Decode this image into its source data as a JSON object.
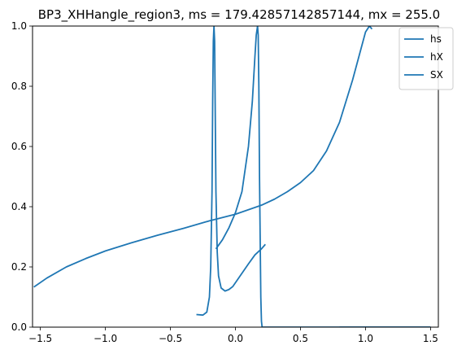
{
  "chart_data": {
    "type": "line",
    "title": "BP3_XHHangle_region3, ms = 179.42857142857144, mx = 255.0",
    "xlabel": "",
    "ylabel": "",
    "xlim": [
      -1.56,
      1.56
    ],
    "ylim": [
      0,
      1.0
    ],
    "xticks": [
      "−1.5",
      "−1.0",
      "−0.5",
      "0.0",
      "0.5",
      "1.0",
      "1.5"
    ],
    "xtick_values": [
      -1.5,
      -1.0,
      -0.5,
      0.0,
      0.5,
      1.0,
      1.5
    ],
    "yticks": [
      "0.0",
      "0.2",
      "0.4",
      "0.6",
      "0.8",
      "1.0"
    ],
    "ytick_values": [
      0.0,
      0.2,
      0.4,
      0.6,
      0.8,
      1.0
    ],
    "grid": false,
    "legend_position": "top-right",
    "line_color": "#1f77b4",
    "series": [
      {
        "name": "hs",
        "x": [
          -1.55,
          -1.45,
          -1.3,
          -1.15,
          -1.0,
          -0.8,
          -0.6,
          -0.4,
          -0.2,
          0.0,
          0.2,
          0.3,
          0.4,
          0.5,
          0.6,
          0.7,
          0.8,
          0.9,
          0.95,
          1.0,
          1.03,
          1.05
        ],
        "y": [
          0.133,
          0.163,
          0.2,
          0.228,
          0.253,
          0.28,
          0.305,
          0.328,
          0.353,
          0.375,
          0.405,
          0.425,
          0.45,
          0.48,
          0.52,
          0.585,
          0.68,
          0.82,
          0.9,
          0.98,
          1.0,
          0.99
        ]
      },
      {
        "name": "hX",
        "x": [
          -0.3,
          -0.25,
          -0.22,
          -0.2,
          -0.19,
          -0.18,
          -0.175,
          -0.17,
          -0.165,
          -0.16,
          -0.155,
          -0.15,
          -0.14,
          -0.13,
          -0.11,
          -0.08,
          -0.05,
          -0.02,
          0.02,
          0.1,
          0.15,
          0.2,
          0.23
        ],
        "y": [
          0.042,
          0.04,
          0.05,
          0.1,
          0.2,
          0.45,
          0.75,
          0.95,
          1.0,
          0.95,
          0.7,
          0.45,
          0.25,
          0.17,
          0.13,
          0.12,
          0.125,
          0.135,
          0.16,
          0.21,
          0.24,
          0.26,
          0.275
        ]
      },
      {
        "name": "SX",
        "x": [
          -0.15,
          -0.1,
          -0.05,
          0.0,
          0.05,
          0.1,
          0.13,
          0.15,
          0.16,
          0.17,
          0.175,
          0.18,
          0.185,
          0.19,
          0.195,
          0.2,
          0.205,
          0.21,
          0.9,
          0.95,
          1.0,
          1.03,
          1.05,
          1.07,
          1.1,
          1.13,
          1.16,
          1.2,
          1.25,
          1.3,
          1.35,
          1.4,
          1.45,
          1.5
        ],
        "y": [
          0.26,
          0.29,
          0.33,
          0.38,
          0.45,
          0.6,
          0.75,
          0.9,
          0.97,
          1.0,
          0.97,
          0.8,
          0.5,
          0.3,
          0.1,
          0.02,
          0.0,
          0.0,
          0.0,
          0.0,
          0.0,
          0.0,
          0.0,
          0.0,
          0.0,
          0.0,
          0.0,
          0.0,
          0.0,
          0.0,
          0.0,
          0.0,
          0.0,
          0.0
        ]
      },
      {
        "name": "",
        "x": [
          0.8,
          0.9,
          0.95,
          1.0,
          1.02,
          1.04,
          1.06,
          1.08,
          1.1,
          1.13,
          1.16,
          1.2,
          1.25,
          1.3,
          1.35,
          1.4,
          1.45,
          1.5
        ],
        "y": [
          0.0,
          0.0,
          0.0,
          0.0,
          0.0,
          0.0,
          0.0,
          0.0,
          0.0,
          0.0,
          0.0,
          0.0,
          0.0,
          0.0,
          0.0,
          0.0,
          0.0,
          0.0
        ]
      }
    ]
  }
}
